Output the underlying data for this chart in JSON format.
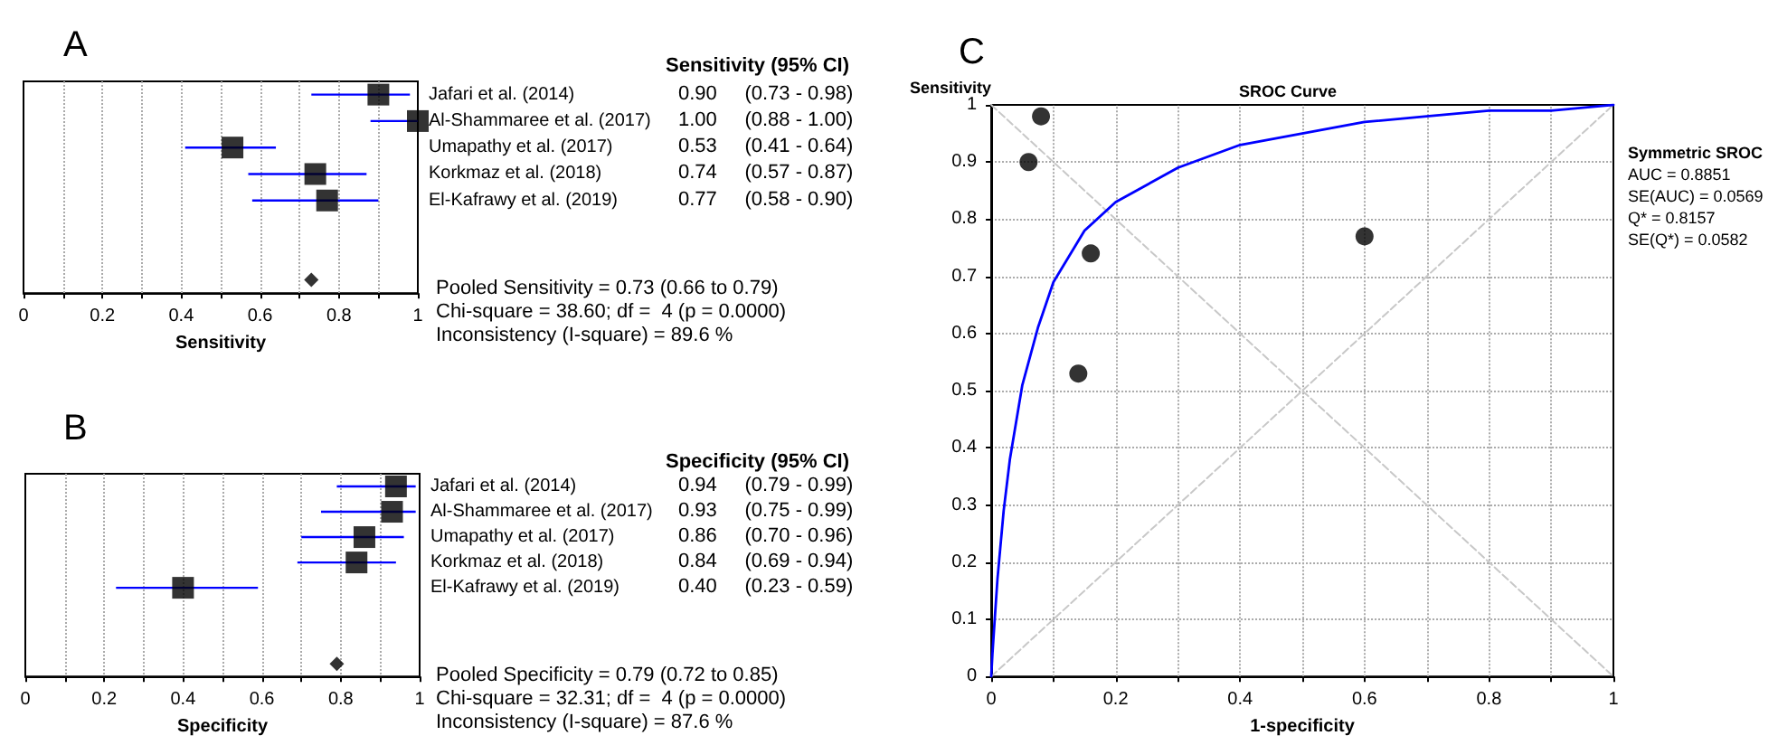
{
  "chart_data": [
    {
      "type": "scatter",
      "title": "A",
      "xlabel": "Sensitivity",
      "orientation": "horizontal",
      "categories": [
        "Jafari et al. (2014)",
        "Al-Shammaree et al. (2017)",
        "Umapathy et al. (2017)",
        "Korkmaz et al. (2018)",
        "El-Kafrawy et al. (2019)",
        null,
        null,
        null
      ],
      "series": [
        {
          "color": "#000000",
          "marker": "square",
          "values": [
            0.9,
            1.0,
            0.53,
            0.74,
            0.77,
            null,
            null,
            null
          ],
          "errors": [
            [
              0.73,
              0.98
            ],
            [
              0.88,
              1.0
            ],
            [
              0.41,
              0.64
            ],
            [
              0.57,
              0.87
            ],
            [
              0.58,
              0.9
            ],
            null,
            null,
            null
          ],
          "value_labels": [
            "0.90     (0.73 - 0.98)",
            "1.00     (0.88 - 1.00)",
            "0.53     (0.41 - 0.64)",
            "0.74     (0.57 - 0.87)",
            "0.77     (0.58 - 0.90)",
            null,
            null,
            null
          ]
        },
        {
          "color": "#000000",
          "marker": "diamond",
          "values": [
            null,
            null,
            null,
            null,
            null,
            null,
            null,
            0.73
          ]
        }
      ],
      "xlim": [
        0,
        1
      ],
      "xticks": [
        0,
        {
          "value": 0.1,
          "label": null
        },
        0.2,
        {
          "value": 0.3,
          "label": null
        },
        0.4,
        {
          "value": 0.5,
          "label": null
        },
        0.6,
        {
          "value": 0.7,
          "label": null
        },
        0.8,
        {
          "value": 0.9,
          "label": null
        },
        1
      ],
      "grid": "x",
      "annotations": [
        "Sensitivity (95% CI)",
        "Pooled Sensitivity = 0.73 (0.66 to 0.79)",
        "Chi-square = 38.60; df =  4 (p = 0.0000)",
        "Inconsistency (I-square) = 89.6 %"
      ]
    },
    {
      "type": "scatter",
      "title": "B",
      "xlabel": "Specificity",
      "orientation": "horizontal",
      "categories": [
        "Jafari et al. (2014)",
        "Al-Shammaree et al. (2017)",
        "Umapathy et al. (2017)",
        "Korkmaz et al. (2018)",
        "El-Kafrawy et al. (2019)",
        null,
        null,
        null
      ],
      "series": [
        {
          "color": "#000000",
          "marker": "square",
          "values": [
            0.94,
            0.93,
            0.86,
            0.84,
            0.4,
            null,
            null,
            null
          ],
          "errors": [
            [
              0.79,
              0.99
            ],
            [
              0.75,
              0.99
            ],
            [
              0.7,
              0.96
            ],
            [
              0.69,
              0.94
            ],
            [
              0.23,
              0.59
            ],
            null,
            null,
            null
          ],
          "value_labels": [
            "0.94     (0.79 - 0.99)",
            "0.93     (0.75 - 0.99)",
            "0.86     (0.70 - 0.96)",
            "0.84     (0.69 - 0.94)",
            "0.40     (0.23 - 0.59)",
            null,
            null,
            null
          ]
        },
        {
          "color": "#000000",
          "marker": "diamond",
          "values": [
            null,
            null,
            null,
            null,
            null,
            null,
            null,
            0.79
          ]
        }
      ],
      "xlim": [
        0,
        1
      ],
      "xticks": [
        0,
        {
          "value": 0.1,
          "label": null
        },
        0.2,
        {
          "value": 0.3,
          "label": null
        },
        0.4,
        {
          "value": 0.5,
          "label": null
        },
        0.6,
        {
          "value": 0.7,
          "label": null
        },
        0.8,
        {
          "value": 0.9,
          "label": null
        },
        1
      ],
      "grid": "x",
      "annotations": [
        "Specificity (95% CI)",
        "Pooled Specificity = 0.79 (0.72 to 0.85)",
        "Chi-square = 32.31; df =  4 (p = 0.0000)",
        "Inconsistency (I-square) = 87.6 %"
      ]
    },
    {
      "type": "scatter",
      "title": "C",
      "subtitle": "SROC Curve",
      "xlabel": "1-specificity",
      "ylabel": "Sensitivity",
      "series": [
        {
          "type": "line",
          "color": "#c8c8c8",
          "line_style": "dashed",
          "marker": "none",
          "x": [
            0,
            1
          ],
          "values": [
            0,
            1
          ]
        },
        {
          "type": "line",
          "color": "#c8c8c8",
          "line_style": "dashed",
          "marker": "none",
          "x": [
            0,
            1
          ],
          "values": [
            1,
            0
          ]
        },
        {
          "type": "line",
          "color": "#0000ff",
          "line_style": "solid",
          "marker": "none",
          "x": [
            0,
            0.002,
            0.005,
            0.01,
            0.02,
            0.03,
            0.05,
            0.075,
            0.1,
            0.15,
            0.2,
            0.3,
            0.4,
            0.5,
            0.6,
            0.7,
            0.8,
            0.9,
            1
          ],
          "values": [
            0,
            0.04,
            0.09,
            0.17,
            0.29,
            0.38,
            0.51,
            0.61,
            0.69,
            0.78,
            0.83,
            0.89,
            0.93,
            0.95,
            0.97,
            0.98,
            0.99,
            0.99,
            1
          ]
        },
        {
          "color": "#000000",
          "marker": "circle",
          "x": [
            0.06,
            0.08,
            0.14,
            0.16,
            0.6
          ],
          "values": [
            0.9,
            0.98,
            0.53,
            0.74,
            0.77
          ]
        }
      ],
      "xlim": [
        0,
        1
      ],
      "ylim": [
        0,
        1
      ],
      "xticks": [
        0,
        {
          "value": 0.1,
          "label": null
        },
        0.2,
        {
          "value": 0.3,
          "label": null
        },
        0.4,
        {
          "value": 0.5,
          "label": null
        },
        0.6,
        {
          "value": 0.7,
          "label": null
        },
        0.8,
        {
          "value": 0.9,
          "label": null
        },
        1
      ],
      "yticks": [
        0,
        0.1,
        0.2,
        0.3,
        0.4,
        0.5,
        0.6,
        0.7,
        0.8,
        0.9,
        1
      ],
      "grid": true,
      "annotations": [
        "Symmetric SROC",
        "AUC = 0.8851",
        "SE(AUC) = 0.0569",
        "Q* = 0.8157",
        "SE(Q*) = 0.0582"
      ]
    }
  ]
}
